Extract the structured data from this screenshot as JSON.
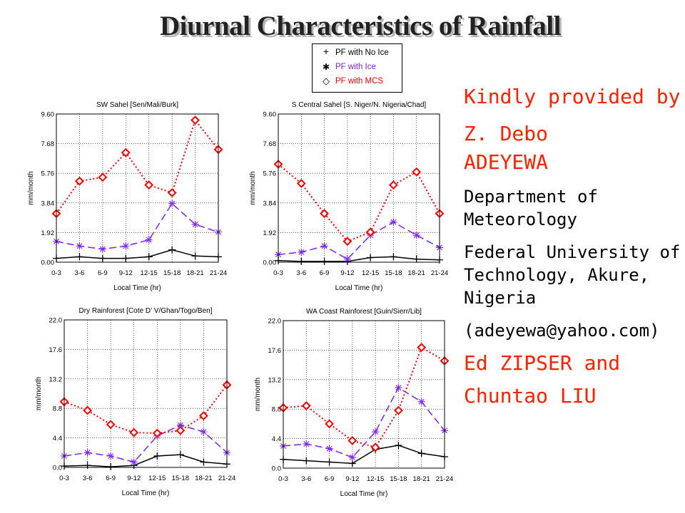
{
  "title": "Diurnal Characteristics of Rainfall",
  "legend": [
    {
      "symbol": "+",
      "label": "PF with No Ice",
      "color": "#000000"
    },
    {
      "symbol": "✱",
      "label": "PF with Ice",
      "color": "#8020ff"
    },
    {
      "symbol": "◇",
      "label": "PF with MCS",
      "color": "#ff0000"
    }
  ],
  "credits": {
    "line1": "Kindly provided by",
    "name1a": "Z. Debo",
    "name1b": "ADEYEWA",
    "dept1": "Department of",
    "dept2": "Meteorology",
    "univ1": "Federal University of",
    "univ2": "Technology, Akure,",
    "univ3": "Nigeria",
    "email": "(adeyewa@yahoo.com)",
    "name2": "Ed ZIPSER and",
    "name3": "Chuntao LIU"
  },
  "chart_data": [
    {
      "type": "line",
      "title": "SW Sahel [Sen/Mali/Burk]",
      "xlabel": "Local Time (hr)",
      "ylabel": "mm/month",
      "categories": [
        "0-3",
        "3-6",
        "6-9",
        "9-12",
        "12-15",
        "15-18",
        "18-21",
        "21-24"
      ],
      "ylim": [
        0,
        9.6
      ],
      "yticks": [
        "0.00",
        "1.92",
        "3.84",
        "5.76",
        "7.68",
        "9.60"
      ],
      "grid": true,
      "series": [
        {
          "name": "PF with No Ice",
          "color": "#000000",
          "values": [
            0.25,
            0.35,
            0.25,
            0.25,
            0.35,
            0.8,
            0.4,
            0.35
          ]
        },
        {
          "name": "PF with Ice",
          "color": "#8020ff",
          "values": [
            1.35,
            1.05,
            0.85,
            1.05,
            1.45,
            3.8,
            2.45,
            1.95
          ]
        },
        {
          "name": "PF with MCS",
          "color": "#ff0000",
          "values": [
            3.15,
            5.25,
            5.5,
            7.1,
            5.0,
            4.5,
            9.2,
            7.3
          ]
        }
      ]
    },
    {
      "type": "line",
      "title": "S Central Sahel [S. Niger/N. Nigeria/Chad]",
      "xlabel": "Local Time (hr)",
      "ylabel": "mm/month",
      "categories": [
        "0-3",
        "3-6",
        "6-9",
        "9-12",
        "12-15",
        "15-18",
        "18-21",
        "21-24"
      ],
      "ylim": [
        0,
        9.6
      ],
      "yticks": [
        "0.00",
        "1.92",
        "3.84",
        "5.76",
        "7.68",
        "9.60"
      ],
      "grid": true,
      "series": [
        {
          "name": "PF with No Ice",
          "color": "#000000",
          "values": [
            0.1,
            0.05,
            0.05,
            0.05,
            0.3,
            0.35,
            0.2,
            0.15
          ]
        },
        {
          "name": "PF with Ice",
          "color": "#8020ff",
          "values": [
            0.5,
            0.65,
            1.05,
            0.2,
            1.75,
            2.6,
            1.75,
            0.95
          ]
        },
        {
          "name": "PF with MCS",
          "color": "#ff0000",
          "values": [
            6.35,
            5.1,
            3.15,
            1.35,
            1.95,
            5.0,
            5.85,
            3.15
          ]
        }
      ]
    },
    {
      "type": "line",
      "title": "Dry Rainforest [Cote D' V/Ghan/Togo/Ben]",
      "xlabel": "Local Time (hr)",
      "ylabel": "mm/month",
      "categories": [
        "0-3",
        "3-6",
        "6-9",
        "9-12",
        "12-15",
        "15-18",
        "18-21",
        "21-24"
      ],
      "ylim": [
        0,
        22.0
      ],
      "yticks": [
        "0.0",
        "4.4",
        "8.8",
        "13.2",
        "17.6",
        "22.0"
      ],
      "grid": true,
      "series": [
        {
          "name": "PF with No Ice",
          "color": "#000000",
          "values": [
            0.2,
            0.3,
            0.1,
            0.3,
            1.7,
            1.9,
            0.8,
            0.5
          ]
        },
        {
          "name": "PF with Ice",
          "color": "#8020ff",
          "values": [
            1.7,
            2.2,
            1.7,
            0.8,
            4.7,
            6.3,
            5.3,
            2.2
          ]
        },
        {
          "name": "PF with MCS",
          "color": "#ff0000",
          "values": [
            9.8,
            8.5,
            6.4,
            5.2,
            5.1,
            5.5,
            7.7,
            12.3
          ]
        }
      ]
    },
    {
      "type": "line",
      "title": "WA Coast Rainforest [Guin/Sierr/Lib]",
      "xlabel": "Local Time (hr)",
      "ylabel": "mm/month",
      "categories": [
        "0-3",
        "3-6",
        "6-9",
        "9-12",
        "12-15",
        "15-18",
        "18-21",
        "21-24"
      ],
      "ylim": [
        0,
        22.0
      ],
      "yticks": [
        "0.0",
        "4.4",
        "8.8",
        "13.2",
        "17.6",
        "22.0"
      ],
      "grid": true,
      "series": [
        {
          "name": "PF with No Ice",
          "color": "#000000",
          "values": [
            1.3,
            1.1,
            0.9,
            0.7,
            2.8,
            3.4,
            2.2,
            1.7
          ]
        },
        {
          "name": "PF with Ice",
          "color": "#8020ff",
          "values": [
            3.3,
            3.6,
            2.9,
            1.6,
            5.4,
            12.0,
            9.9,
            5.6
          ]
        },
        {
          "name": "PF with MCS",
          "color": "#ff0000",
          "values": [
            9.0,
            9.3,
            6.6,
            4.1,
            3.1,
            8.6,
            18.0,
            16.0
          ]
        }
      ]
    }
  ]
}
